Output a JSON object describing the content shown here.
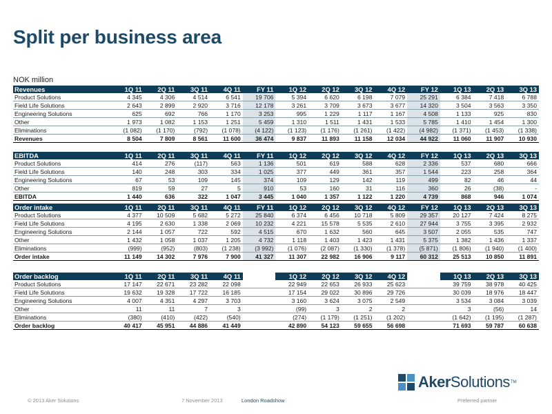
{
  "title": "Split per business area",
  "unit": "NOK million",
  "sections": [
    {
      "header": [
        "Revenues",
        "1Q 11",
        "2Q 11",
        "3Q 11",
        "4Q 11",
        "FY 11",
        "1Q 12",
        "2Q 12",
        "3Q 12",
        "4Q 12",
        "FY 12",
        "1Q 13",
        "2Q 13",
        "3Q 13"
      ],
      "rows": [
        [
          "Product Solutions",
          "4 345",
          "4 306",
          "4 514",
          "6 541",
          "19 706",
          "5 394",
          "6 620",
          "6 198",
          "7 079",
          "25 291",
          "6 384",
          "7 418",
          "6 788"
        ],
        [
          "Field Life Solutions",
          "2 643",
          "2 899",
          "2 920",
          "3 716",
          "12 178",
          "3 261",
          "3 709",
          "3 673",
          "3 677",
          "14 320",
          "3 504",
          "3 563",
          "3 350"
        ],
        [
          "Engineering Solutions",
          "625",
          "692",
          "766",
          "1 170",
          "3 253",
          "995",
          "1 229",
          "1 117",
          "1 167",
          "4 508",
          "1 133",
          "925",
          "830"
        ],
        [
          "Other",
          "1 973",
          "1 082",
          "1 153",
          "1 251",
          "5 459",
          "1 310",
          "1 511",
          "1 431",
          "1 533",
          "5 785",
          "1 410",
          "1 454",
          "1 300"
        ],
        [
          "Eliminations",
          "(1 082)",
          "(1 170)",
          "(792)",
          "(1 078)",
          "(4 122)",
          "(1 123)",
          "(1 176)",
          "(1 261)",
          "(1 422)",
          "(4 982)",
          "(1 371)",
          "(1 453)",
          "(1 338)"
        ]
      ],
      "total": [
        "Revenues",
        "8 504",
        "7 809",
        "8 561",
        "11 600",
        "36 474",
        "9 837",
        "11 893",
        "11 158",
        "12 034",
        "44 922",
        "11 060",
        "11 907",
        "10 930"
      ]
    },
    {
      "header": [
        "EBITDA",
        "1Q 11",
        "2Q 11",
        "3Q 11",
        "4Q 11",
        "FY 11",
        "1Q 12",
        "2Q 12",
        "3Q 12",
        "4Q 12",
        "FY 12",
        "1Q 13",
        "2Q 13",
        "3Q 13"
      ],
      "rows": [
        [
          "Product Solutions",
          "414",
          "276",
          "(117)",
          "563",
          "1 136",
          "501",
          "619",
          "588",
          "628",
          "2 336",
          "537",
          "680",
          "666"
        ],
        [
          "Field Life Solutions",
          "140",
          "248",
          "303",
          "334",
          "1 025",
          "377",
          "449",
          "361",
          "357",
          "1 544",
          "223",
          "258",
          "364"
        ],
        [
          "Engineering Solutions",
          "67",
          "53",
          "109",
          "145",
          "374",
          "109",
          "129",
          "142",
          "119",
          "499",
          "82",
          "46",
          "44"
        ],
        [
          "Other",
          "819",
          "59",
          "27",
          "5",
          "910",
          "53",
          "160",
          "31",
          "116",
          "360",
          "26",
          "(38)",
          "-"
        ]
      ],
      "total": [
        "EBITDA",
        "1 440",
        "636",
        "322",
        "1 047",
        "3 445",
        "1 040",
        "1 357",
        "1 122",
        "1 220",
        "4 739",
        "868",
        "946",
        "1 074"
      ]
    },
    {
      "header": [
        "Order intake",
        "1Q 11",
        "2Q 11",
        "3Q 11",
        "4Q 11",
        "FY 11",
        "1Q 12",
        "2Q 12",
        "3Q 12",
        "4Q 12",
        "FY 12",
        "1Q 13",
        "2Q 13",
        "3Q 13"
      ],
      "rows": [
        [
          "Product Solutions",
          "4 377",
          "10 509",
          "5 682",
          "5 272",
          "25 840",
          "6 374",
          "6 456",
          "10 718",
          "5 809",
          "29 357",
          "20 127",
          "7 424",
          "8 275"
        ],
        [
          "Field Life Solutions",
          "4 195",
          "2 630",
          "1 338",
          "2 069",
          "10 232",
          "4 221",
          "15 578",
          "5 535",
          "2 610",
          "27 944",
          "3 755",
          "3 395",
          "2 932"
        ],
        [
          "Engineering Solutions",
          "2 144",
          "1 057",
          "722",
          "592",
          "4 515",
          "670",
          "1 632",
          "560",
          "645",
          "3 507",
          "2 055",
          "535",
          "747"
        ],
        [
          "Other",
          "1 432",
          "1 058",
          "1 037",
          "1 205",
          "4 732",
          "1 118",
          "1 403",
          "1 423",
          "1 431",
          "5 375",
          "1 382",
          "1 436",
          "1 337"
        ],
        [
          "Eliminations",
          "(999)",
          "(952)",
          "(803)",
          "(1 238)",
          "(3 992)",
          "(1 076)",
          "(2 087)",
          "(1 330)",
          "(1 378)",
          "(5 871)",
          "(1 806)",
          "(1 940)",
          "(1 400)"
        ]
      ],
      "total": [
        "Order intake",
        "11 149",
        "14 302",
        "7 976",
        "7 900",
        "41 327",
        "11 307",
        "22 982",
        "16 906",
        "9 117",
        "60 312",
        "25 513",
        "10 850",
        "11 891"
      ]
    },
    {
      "header": [
        "Order backlog",
        "1Q 11",
        "2Q 11",
        "3Q 11",
        "4Q 11",
        "",
        "1Q 12",
        "2Q 12",
        "3Q 12",
        "4Q 12",
        "",
        "1Q 13",
        "2Q 13",
        "3Q 13"
      ],
      "rows": [
        [
          "Product Solutions",
          "17 147",
          "22 671",
          "23 282",
          "22 098",
          "",
          "22 949",
          "22 653",
          "26 933",
          "25 623",
          "",
          "39 759",
          "38 978",
          "40 425"
        ],
        [
          "Field Life Solutions",
          "19 632",
          "19 328",
          "17 722",
          "16 185",
          "",
          "17 154",
          "29 022",
          "30 896",
          "29 726",
          "",
          "30 039",
          "18 976",
          "18 447"
        ],
        [
          "Engineering Solutions",
          "4 007",
          "4 351",
          "4 297",
          "3 703",
          "",
          "3 160",
          "3 624",
          "3 075",
          "2 549",
          "",
          "3 534",
          "3 084",
          "3 039"
        ],
        [
          "Other",
          "11",
          "11",
          "7",
          "3",
          "",
          "(99)",
          "3",
          "2",
          "2",
          "",
          "3",
          "(56)",
          "14"
        ],
        [
          "Eliminations",
          "(380)",
          "(410)",
          "(422)",
          "(540)",
          "",
          "(274)",
          "(1 179)",
          "(1 251)",
          "(1 202)",
          "",
          "(1 642)",
          "(1 195)",
          "(1 287)"
        ]
      ],
      "total": [
        "Order backlog",
        "40 417",
        "45 951",
        "44 886",
        "41 449",
        "",
        "42 890",
        "54 123",
        "59 655",
        "56 698",
        "",
        "71 693",
        "59 787",
        "60 638"
      ]
    }
  ],
  "logo": {
    "bold": "Aker",
    "light": "Solutions",
    "tm": "TM"
  },
  "footer": {
    "copyright": "© 2013 Aker Solutions",
    "date": "7 November 2013",
    "event": "London Roadshow",
    "tagline": "Preferred partner"
  },
  "colors": {
    "header_bg": "#0f3d57",
    "shade": "#dbe3e8",
    "title": "#1e4a68",
    "logo_accent": "#4a90c2"
  }
}
